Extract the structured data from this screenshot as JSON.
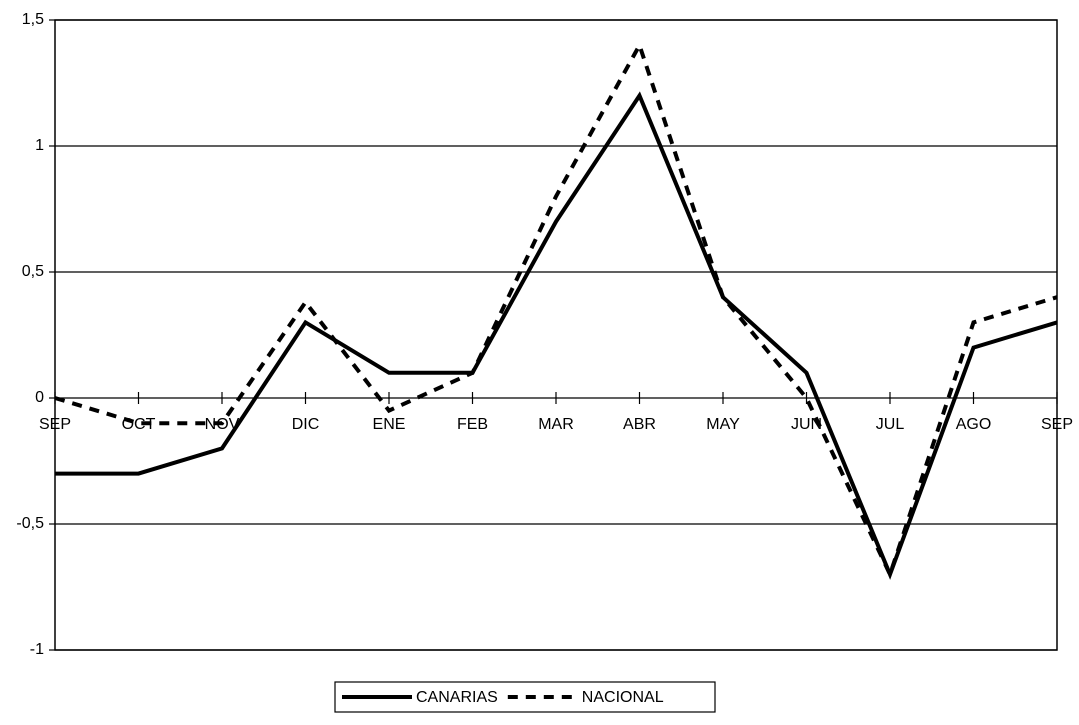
{
  "chart_data": {
    "type": "line",
    "categories": [
      "SEP",
      "OCT",
      "NOV",
      "DIC",
      "ENE",
      "FEB",
      "MAR",
      "ABR",
      "MAY",
      "JUN",
      "JUL",
      "AGO",
      "SEP"
    ],
    "series": [
      {
        "name": "CANARIAS",
        "color": "#000000",
        "dash": "solid",
        "values": [
          -0.3,
          -0.3,
          -0.2,
          0.3,
          0.1,
          0.1,
          0.7,
          1.2,
          0.4,
          0.1,
          -0.7,
          0.2,
          0.3
        ]
      },
      {
        "name": "NACIONAL",
        "color": "#000000",
        "dash": "dashed",
        "values": [
          0,
          -0.1,
          -0.1,
          0.38,
          -0.05,
          0.1,
          0.8,
          1.4,
          0.4,
          0,
          -0.7,
          0.3,
          0.4
        ]
      }
    ],
    "ylim": [
      -1,
      1.5
    ],
    "yticks": [
      {
        "value": -1,
        "label": "-1"
      },
      {
        "value": -0.5,
        "label": "-0,5"
      },
      0,
      {
        "value": 0.5,
        "label": "0,5"
      },
      1,
      {
        "value": 1.5,
        "label": "1,5"
      }
    ],
    "grid": true,
    "legend": "bottom"
  }
}
